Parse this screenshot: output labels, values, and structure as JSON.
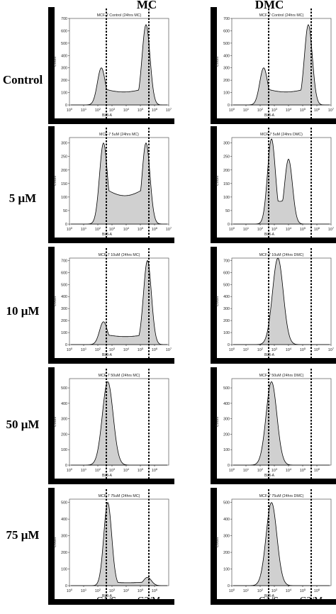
{
  "figure": {
    "columns": [
      "MC",
      "DMC"
    ],
    "row_labels": [
      "Control",
      "5 μM",
      "10 μM",
      "50 μM",
      "75 μM"
    ],
    "bottom_labels": [
      "G1/S",
      "G2/M"
    ],
    "x_axis_label": "BL3-A",
    "y_axis_label": "Count",
    "colors": {
      "fill": "#d0d0d0",
      "stroke": "#000000",
      "frame": "#000000",
      "background": "#ffffff"
    }
  },
  "chart_data": [
    {
      "type": "area",
      "title": "MCF-7 Control (24hrs MC)",
      "xlabel": "BL3-A",
      "ylabel": "Count",
      "xscale": "log",
      "xlim": [
        1,
        10000000
      ],
      "ylim": [
        0,
        700
      ],
      "yticks": [
        0,
        100,
        200,
        300,
        400,
        500,
        600,
        700
      ],
      "xticks": [
        "10^0",
        "10^1",
        "10^2",
        "10^3",
        "10^4",
        "10^5",
        "10^6",
        "10^7"
      ],
      "peaks": [
        {
          "log10_x": 2.25,
          "count": 300
        },
        {
          "log10_x": 5.4,
          "count": 650
        }
      ],
      "marker_lines_log10": [
        2.6,
        5.6
      ]
    },
    {
      "type": "area",
      "title": "MCF-7 Control (24hrs MC)",
      "xlabel": "BL3-A",
      "ylabel": "Count",
      "xscale": "log",
      "xlim": [
        1,
        10000000
      ],
      "ylim": [
        0,
        700
      ],
      "yticks": [
        0,
        100,
        200,
        300,
        400,
        500,
        600,
        700
      ],
      "xticks": [
        "10^0",
        "10^1",
        "10^2",
        "10^3",
        "10^4",
        "10^5",
        "10^6",
        "10^7"
      ],
      "peaks": [
        {
          "log10_x": 2.25,
          "count": 300
        },
        {
          "log10_x": 5.4,
          "count": 650
        }
      ],
      "marker_lines_log10": [
        2.6,
        5.6
      ]
    },
    {
      "type": "area",
      "title": "MCF-7 5uM (24hrs MC)",
      "xlabel": "BL3-A",
      "ylabel": "Count",
      "xscale": "log",
      "xlim": [
        1,
        10000000
      ],
      "ylim": [
        0,
        320
      ],
      "yticks": [
        0,
        50,
        100,
        150,
        200,
        250,
        300
      ],
      "xticks": [
        "10^0",
        "10^1",
        "10^2",
        "10^3",
        "10^4",
        "10^5",
        "10^6",
        "10^7"
      ],
      "peaks": [
        {
          "log10_x": 2.4,
          "count": 300
        },
        {
          "log10_x": 5.4,
          "count": 300
        }
      ],
      "marker_lines_log10": [
        2.6,
        5.6
      ]
    },
    {
      "type": "area",
      "title": "MCF-7 5uM (24hrs DMC)",
      "xlabel": "BL3-A",
      "ylabel": "Count",
      "xscale": "log",
      "xlim": [
        1,
        10000000
      ],
      "ylim": [
        0,
        320
      ],
      "yticks": [
        0,
        50,
        100,
        150,
        200,
        250,
        300
      ],
      "xticks": [
        "10^0",
        "10^1",
        "10^2",
        "10^3",
        "10^4",
        "10^5",
        "10^6",
        "10^7"
      ],
      "peaks": [
        {
          "log10_x": 2.8,
          "count": 315
        },
        {
          "log10_x": 4.0,
          "count": 240
        }
      ],
      "marker_lines_log10": [
        2.6,
        5.6
      ]
    },
    {
      "type": "area",
      "title": "MCF-7 10uM (24hrs MC)",
      "xlabel": "BL3-A",
      "ylabel": "Count",
      "xscale": "log",
      "xlim": [
        1,
        10000000
      ],
      "ylim": [
        0,
        720
      ],
      "yticks": [
        0,
        100,
        200,
        300,
        400,
        500,
        600,
        700
      ],
      "xticks": [
        "10^0",
        "10^1",
        "10^2",
        "10^3",
        "10^4",
        "10^5",
        "10^6",
        "10^7"
      ],
      "peaks": [
        {
          "log10_x": 2.4,
          "count": 190
        },
        {
          "log10_x": 5.5,
          "count": 700
        }
      ],
      "marker_lines_log10": [
        2.6,
        5.6
      ]
    },
    {
      "type": "area",
      "title": "MCF-7 10uM (24hrs DMC)",
      "xlabel": "BL3-A",
      "ylabel": "Count",
      "xscale": "log",
      "xlim": [
        1,
        10000000
      ],
      "ylim": [
        0,
        720
      ],
      "yticks": [
        0,
        100,
        200,
        300,
        400,
        500,
        600,
        700
      ],
      "xticks": [
        "10^0",
        "10^1",
        "10^2",
        "10^3",
        "10^4",
        "10^5",
        "10^6",
        "10^7"
      ],
      "peaks": [
        {
          "log10_x": 3.25,
          "count": 720
        }
      ],
      "marker_lines_log10": [
        2.6,
        5.6
      ]
    },
    {
      "type": "area",
      "title": "MCF-7 50uM (24hrs MC)",
      "xlabel": "BL3-A",
      "ylabel": "Count",
      "xscale": "log",
      "xlim": [
        1,
        10000000
      ],
      "ylim": [
        0,
        560
      ],
      "yticks": [
        0,
        100,
        200,
        300,
        400,
        500
      ],
      "xticks": [
        "10^0",
        "10^1",
        "10^2",
        "10^3",
        "10^4",
        "10^5",
        "10^6"
      ],
      "peaks": [
        {
          "log10_x": 2.7,
          "count": 540
        }
      ],
      "marker_lines_log10": [
        2.6,
        5.6
      ]
    },
    {
      "type": "area",
      "title": "MCF-7 50uM (24hrs DMC)",
      "xlabel": "BL3-A",
      "ylabel": "Count",
      "xscale": "log",
      "xlim": [
        1,
        10000000
      ],
      "ylim": [
        0,
        560
      ],
      "yticks": [
        0,
        100,
        200,
        300,
        400,
        500
      ],
      "xticks": [
        "10^0",
        "10^1",
        "10^2",
        "10^3",
        "10^4",
        "10^5",
        "10^6"
      ],
      "peaks": [
        {
          "log10_x": 2.8,
          "count": 540
        }
      ],
      "marker_lines_log10": [
        2.6,
        5.6
      ]
    },
    {
      "type": "area",
      "title": "MCF-7 75uM (24hrs MC)",
      "xlabel": "BL3-A",
      "ylabel": "Count",
      "xscale": "log",
      "xlim": [
        1,
        10000000
      ],
      "ylim": [
        0,
        520
      ],
      "yticks": [
        0,
        100,
        200,
        300,
        400,
        500
      ],
      "xticks": [
        "10^0",
        "10^1",
        "10^2",
        "10^3",
        "10^4",
        "10^5",
        "10^6"
      ],
      "peaks": [
        {
          "log10_x": 2.7,
          "count": 500
        },
        {
          "log10_x": 5.5,
          "count": 50
        }
      ],
      "marker_lines_log10": [
        2.6,
        5.6
      ]
    },
    {
      "type": "area",
      "title": "MCF-7 75uM (24hrs DMC)",
      "xlabel": "BL3-A",
      "ylabel": "Count",
      "xscale": "log",
      "xlim": [
        1,
        10000000
      ],
      "ylim": [
        0,
        520
      ],
      "yticks": [
        0,
        100,
        200,
        300,
        400,
        500
      ],
      "xticks": [
        "10^0",
        "10^1",
        "10^2",
        "10^3",
        "10^4",
        "10^5",
        "10^6"
      ],
      "peaks": [
        {
          "log10_x": 2.8,
          "count": 500
        }
      ],
      "marker_lines_log10": [
        2.6,
        5.6
      ]
    }
  ]
}
